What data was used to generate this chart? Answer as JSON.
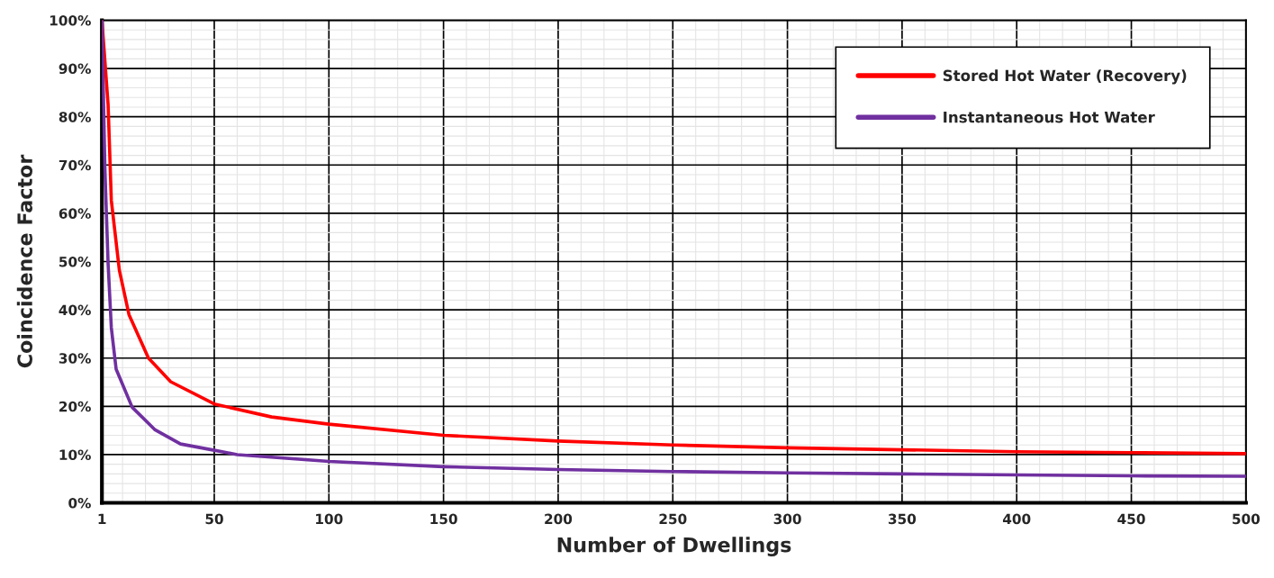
{
  "chart_data": {
    "type": "line",
    "xlabel": "Number of Dwellings",
    "ylabel": "Coincidence Factor",
    "xlim": [
      1,
      500
    ],
    "ylim": [
      0,
      100
    ],
    "xticks": [
      1,
      50,
      100,
      150,
      200,
      250,
      300,
      350,
      400,
      450,
      500
    ],
    "yticks": [
      {
        "value": 0,
        "label": "0%"
      },
      {
        "value": 10,
        "label": "10%"
      },
      {
        "value": 20,
        "label": "20%"
      },
      {
        "value": 30,
        "label": "30%"
      },
      {
        "value": 40,
        "label": "40%"
      },
      {
        "value": 50,
        "label": "50%"
      },
      {
        "value": 60,
        "label": "60%"
      },
      {
        "value": 70,
        "label": "70%"
      },
      {
        "value": 80,
        "label": "80%"
      },
      {
        "value": 90,
        "label": "90%"
      },
      {
        "value": 100,
        "label": "100%"
      }
    ],
    "grid": true,
    "legend": "top right",
    "marker": "none",
    "line_style": "solid",
    "series": [
      {
        "name": "Stored Hot Water (Recovery)",
        "color": "#ff0000",
        "x": [
          1,
          3.7,
          5.1,
          8.6,
          12.8,
          21.3,
          31,
          50,
          75,
          100,
          150,
          200,
          250,
          300,
          350,
          400,
          450,
          500
        ],
        "values": [
          100,
          82.5,
          62.7,
          48.2,
          39,
          30,
          25.1,
          20.5,
          17.8,
          16.3,
          14,
          12.8,
          12,
          11.4,
          11,
          10.6,
          10.4,
          10.2
        ]
      },
      {
        "name": "Instantaneous Hot Water",
        "color": "#7030a0",
        "x": [
          1,
          2.3,
          3.7,
          5.1,
          7.2,
          14.2,
          24,
          35.3,
          50,
          60,
          100,
          150,
          200,
          250,
          300,
          350,
          400,
          450,
          500
        ],
        "values": [
          100,
          69.3,
          49.5,
          36.3,
          27.7,
          19.8,
          15.2,
          12.2,
          10.9,
          10,
          8.6,
          7.5,
          6.9,
          6.5,
          6.2,
          6,
          5.8,
          5.6,
          5.5
        ]
      }
    ]
  }
}
